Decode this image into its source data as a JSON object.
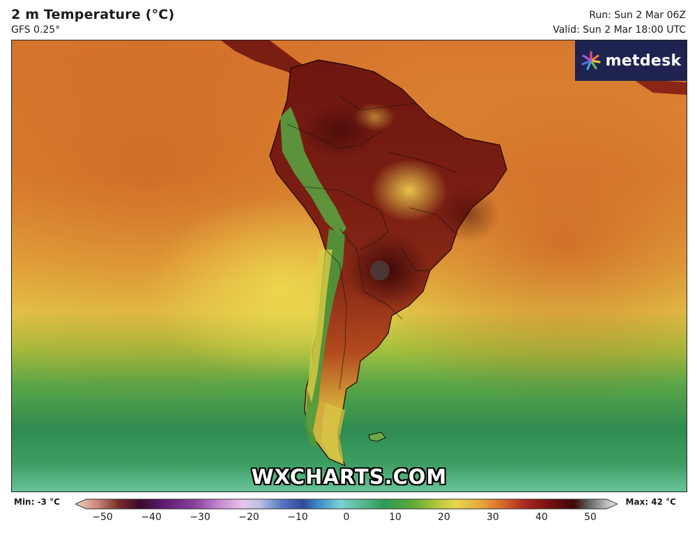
{
  "header": {
    "title": "2 m Temperature (°C)",
    "model": "GFS 0.25°",
    "run": "Run: Sun 2 Mar 06Z",
    "valid": "Valid: Sun 2 Mar 18:00 UTC"
  },
  "brand": {
    "name": "metdesk",
    "bg_color": "#1f2350"
  },
  "watermark": "WXCHARTS.COM",
  "legend": {
    "min_label": "Min: -3 °C",
    "max_label": "Max: 42 °C",
    "ticks": [
      "−50",
      "−40",
      "−30",
      "−20",
      "−10",
      "0",
      "10",
      "20",
      "30",
      "40",
      "50"
    ],
    "range": [
      -50,
      50
    ],
    "colors": [
      "#f3d3b8",
      "#c98a78",
      "#7a2c2c",
      "#3a0a2e",
      "#5c1a6a",
      "#8a3fa0",
      "#c98fd2",
      "#e7c6e8",
      "#bcc0e6",
      "#5a78c4",
      "#2e4a9e",
      "#3f8fc8",
      "#7ed0d4",
      "#5fbf9c",
      "#2e9a58",
      "#5aa83a",
      "#a6c23a",
      "#e6d94a",
      "#e7a33e",
      "#d2662a",
      "#a8281c",
      "#6e0f0e",
      "#3a0a0a",
      "#6b6b6b",
      "#bdbdbd",
      "#eeeeee"
    ]
  },
  "map": {
    "region": "South America",
    "palette": {
      "ocean_warm": "#d46a2c",
      "ocean_mid": "#e8a33c",
      "ocean_cool_yellow": "#ead24a",
      "ocean_green": "#5fa84a",
      "ocean_dark_green": "#2e8a52",
      "ocean_teal": "#5cbf96",
      "land_hot": "#7a1a12",
      "land_very_hot": "#4a0b0b",
      "land_warm": "#b8401c",
      "andes_green": "#4f9a3e",
      "andes_yellow": "#d8d048"
    }
  }
}
